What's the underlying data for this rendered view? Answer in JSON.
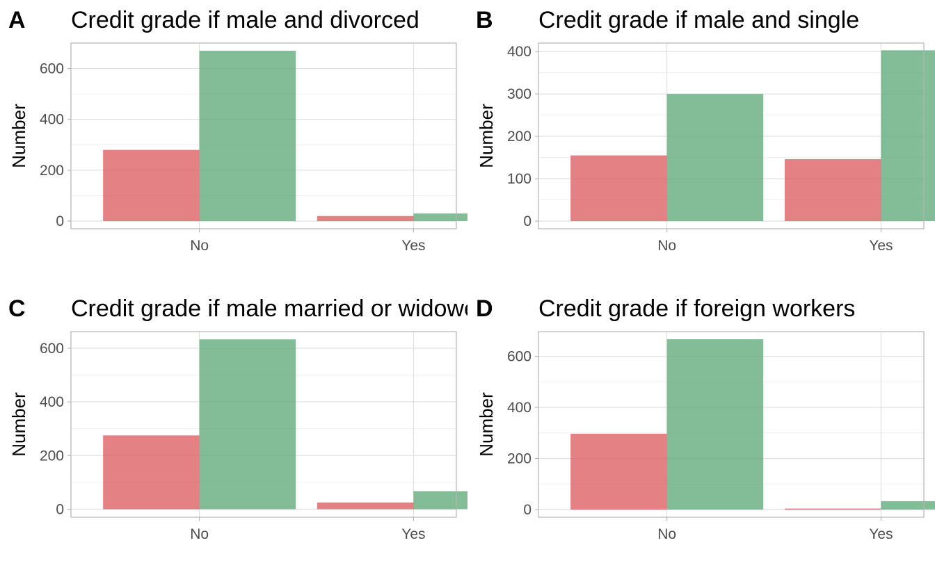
{
  "figure": {
    "colors": {
      "bad": "#d9575b",
      "good": "#5aa775",
      "bar_opacity": 0.75
    },
    "ylabel": "Number"
  },
  "chart_data": [
    {
      "type": "bar",
      "panel": "A",
      "title": "Credit grade if male and divorced",
      "xlabel": "",
      "ylabel": "Number",
      "categories": [
        "No",
        "Yes"
      ],
      "series": [
        {
          "values": [
            280,
            20
          ],
          "color": "#d9575b"
        },
        {
          "values": [
            670,
            30
          ],
          "color": "#5aa775"
        }
      ],
      "yticks": [
        0,
        200,
        400,
        600
      ],
      "ylim": [
        -30,
        700
      ],
      "grid": true
    },
    {
      "type": "bar",
      "panel": "B",
      "title": "Credit grade if male and single",
      "xlabel": "",
      "ylabel": "Number",
      "categories": [
        "No",
        "Yes"
      ],
      "series": [
        {
          "values": [
            155,
            146
          ],
          "color": "#d9575b"
        },
        {
          "values": [
            300,
            403
          ],
          "color": "#5aa775"
        }
      ],
      "yticks": [
        0,
        100,
        200,
        300,
        400
      ],
      "ylim": [
        -18,
        420
      ],
      "grid": true
    },
    {
      "type": "bar",
      "panel": "C",
      "title": "Credit grade if male married or widowed",
      "xlabel": "",
      "ylabel": "Number",
      "categories": [
        "No",
        "Yes"
      ],
      "series": [
        {
          "values": [
            275,
            25
          ],
          "color": "#d9575b"
        },
        {
          "values": [
            633,
            67
          ],
          "color": "#5aa775"
        }
      ],
      "yticks": [
        0,
        200,
        400,
        600
      ],
      "ylim": [
        -30,
        662
      ],
      "grid": true
    },
    {
      "type": "bar",
      "panel": "D",
      "title": "Credit grade if foreign workers",
      "xlabel": "",
      "ylabel": "Number",
      "categories": [
        "No",
        "Yes"
      ],
      "series": [
        {
          "values": [
            297,
            4
          ],
          "color": "#d9575b"
        },
        {
          "values": [
            667,
            33
          ],
          "color": "#5aa775"
        }
      ],
      "yticks": [
        0,
        200,
        400,
        600
      ],
      "ylim": [
        -30,
        697
      ],
      "grid": true
    }
  ]
}
